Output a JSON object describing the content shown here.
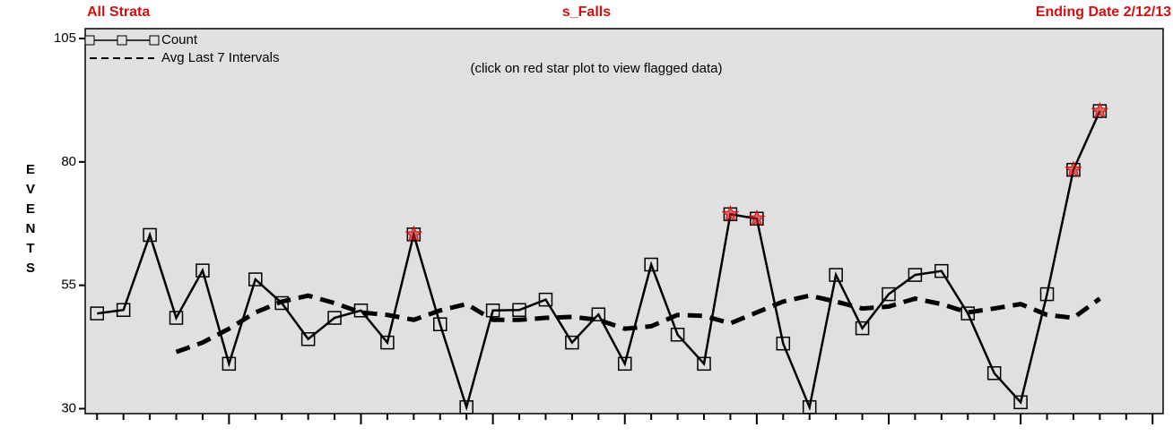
{
  "chart_data": {
    "type": "line",
    "header_left": "All Strata",
    "title": "s_Falls",
    "header_right": "Ending Date 2/12/13",
    "note": "(click on red star plot to view flagged data)",
    "ylabel": "EVENTS",
    "ylim": [
      29,
      107
    ],
    "yticks": [
      30,
      55,
      80,
      105
    ],
    "xlim": [
      -0.45,
      40.4
    ],
    "series": [
      {
        "name": "Count",
        "color": "#000000",
        "style": "solid-square",
        "values": [
          49.3,
          50,
          65.2,
          48.4,
          58,
          39.1,
          56.2,
          51.4,
          44.1,
          48.4,
          49.9,
          43.4,
          65.3,
          47.1,
          30.3,
          49.9,
          50,
          52.1,
          43.4,
          49.1,
          39.1,
          59.2,
          45,
          39.1,
          69.4,
          68.5,
          43.2,
          30.3,
          57.1,
          46.3,
          53.2,
          57.1,
          57.9,
          49.3,
          37.2,
          31.3,
          53.2,
          78.4,
          90.3
        ]
      },
      {
        "name": "Avg Last 7 Intervals",
        "color": "#000000",
        "style": "dashed",
        "values": [
          null,
          null,
          null,
          41.5,
          43.4,
          46.2,
          49.5,
          51.7,
          52.9,
          51.4,
          49.5,
          49.0,
          48.0,
          49.9,
          51.2,
          48.0,
          48.0,
          48.4,
          48.6,
          48.0,
          46.2,
          46.7,
          49.0,
          48.8,
          47.3,
          49.5,
          51.7,
          52.9,
          51.7,
          50.3,
          50.7,
          52.3,
          51.2,
          49.5,
          50.3,
          51.2,
          49.0,
          48.4,
          52.3
        ]
      }
    ],
    "flagged_indices": [
      12,
      24,
      25,
      37,
      38
    ],
    "flag_color": "#d01010",
    "background": "#e0e0e0"
  }
}
